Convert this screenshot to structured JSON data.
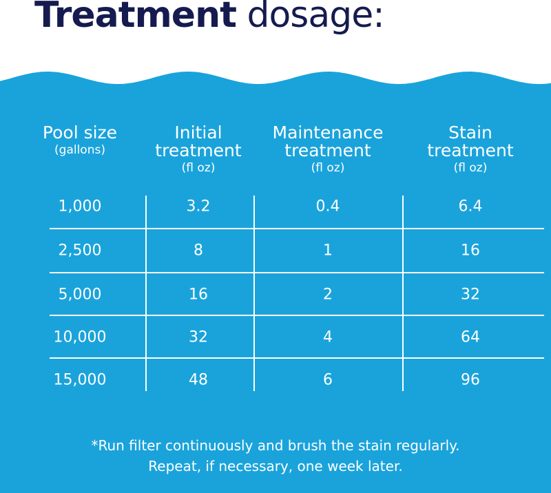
{
  "title": {
    "bold": "Treatment",
    "rest": " dosage:"
  },
  "colors": {
    "water": "#1aa3db",
    "title": "#151b4e"
  },
  "headers": [
    {
      "main": "Pool size",
      "unit": "(gallons)"
    },
    {
      "main": "Initial treatment",
      "unit": "(fl oz)"
    },
    {
      "main": "Maintenance treatment",
      "unit": "(fl oz)"
    },
    {
      "main": "Stain treatment",
      "unit": "(fl oz)"
    }
  ],
  "rows": [
    [
      "1,000",
      "3.2",
      "0.4",
      "6.4"
    ],
    [
      "2,500",
      "8",
      "1",
      "16"
    ],
    [
      "5,000",
      "16",
      "2",
      "32"
    ],
    [
      "10,000",
      "32",
      "4",
      "64"
    ],
    [
      "15,000",
      "48",
      "6",
      "96"
    ]
  ],
  "note": {
    "line1": "*Run filter continuously and brush the stain regularly.",
    "line2": "Repeat, if necessary, one week later."
  }
}
